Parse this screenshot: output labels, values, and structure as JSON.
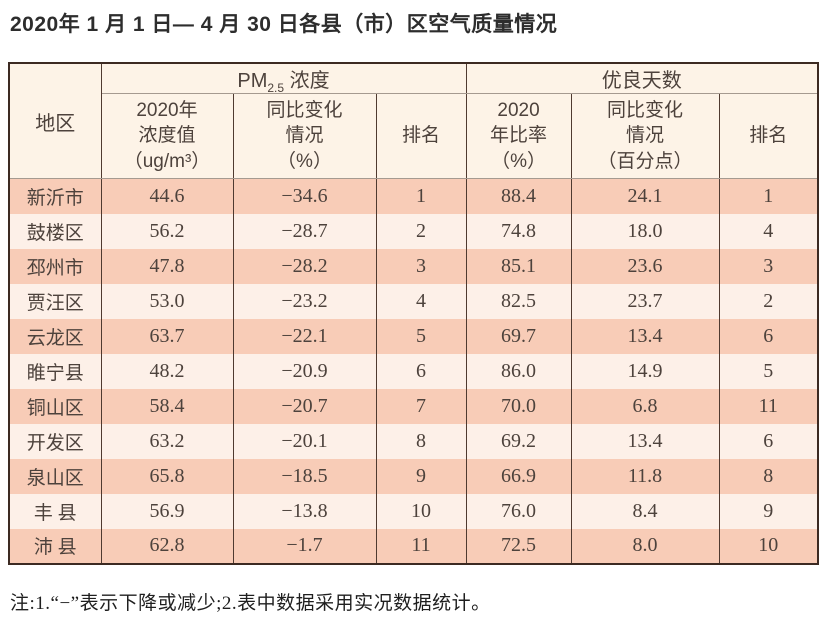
{
  "page_title": "2020年 1 月 1 日— 4 月 30 日各县（市）区空气质量情况",
  "footnote": "注:1.“−”表示下降或减少;2.表中数据采用实况数据统计。",
  "colors": {
    "row_dark": "#f8ccb7",
    "row_light": "#fdf0e8",
    "header_bg": "#fdf3e7",
    "frame_border": "#3c2a22"
  },
  "table": {
    "header": {
      "region": "地区",
      "pm_group_main": "PM",
      "pm_group_sub": "2.5",
      "pm_group_rest": " 浓度",
      "good_days_group": "优良天数",
      "col_pm_value": "2020年\n浓度值\n（ug/m³）",
      "col_pm_change": "同比变化\n情况\n（%）",
      "col_pm_rank": "排名",
      "col_ratio": "2020\n年比率\n（%）",
      "col_ratio_change": "同比变化\n情况\n（百分点）",
      "col_rank": "排名"
    },
    "rows": [
      {
        "region": "新沂市",
        "pm_value": "44.6",
        "pm_change": "−34.6",
        "pm_rank": "1",
        "ratio": "88.4",
        "ratio_change": "24.1",
        "rank": "1"
      },
      {
        "region": "鼓楼区",
        "pm_value": "56.2",
        "pm_change": "−28.7",
        "pm_rank": "2",
        "ratio": "74.8",
        "ratio_change": "18.0",
        "rank": "4"
      },
      {
        "region": "邳州市",
        "pm_value": "47.8",
        "pm_change": "−28.2",
        "pm_rank": "3",
        "ratio": "85.1",
        "ratio_change": "23.6",
        "rank": "3"
      },
      {
        "region": "贾汪区",
        "pm_value": "53.0",
        "pm_change": "−23.2",
        "pm_rank": "4",
        "ratio": "82.5",
        "ratio_change": "23.7",
        "rank": "2"
      },
      {
        "region": "云龙区",
        "pm_value": "63.7",
        "pm_change": "−22.1",
        "pm_rank": "5",
        "ratio": "69.7",
        "ratio_change": "13.4",
        "rank": "6"
      },
      {
        "region": "睢宁县",
        "pm_value": "48.2",
        "pm_change": "−20.9",
        "pm_rank": "6",
        "ratio": "86.0",
        "ratio_change": "14.9",
        "rank": "5"
      },
      {
        "region": "铜山区",
        "pm_value": "58.4",
        "pm_change": "−20.7",
        "pm_rank": "7",
        "ratio": "70.0",
        "ratio_change": "6.8",
        "rank": "11"
      },
      {
        "region": "开发区",
        "pm_value": "63.2",
        "pm_change": "−20.1",
        "pm_rank": "8",
        "ratio": "69.2",
        "ratio_change": "13.4",
        "rank": "6"
      },
      {
        "region": "泉山区",
        "pm_value": "65.8",
        "pm_change": "−18.5",
        "pm_rank": "9",
        "ratio": "66.9",
        "ratio_change": "11.8",
        "rank": "8"
      },
      {
        "region": "丰 县",
        "pm_value": "56.9",
        "pm_change": "−13.8",
        "pm_rank": "10",
        "ratio": "76.0",
        "ratio_change": "8.4",
        "rank": "9"
      },
      {
        "region": "沛 县",
        "pm_value": "62.8",
        "pm_change": "−1.7",
        "pm_rank": "11",
        "ratio": "72.5",
        "ratio_change": "8.0",
        "rank": "10"
      }
    ]
  }
}
